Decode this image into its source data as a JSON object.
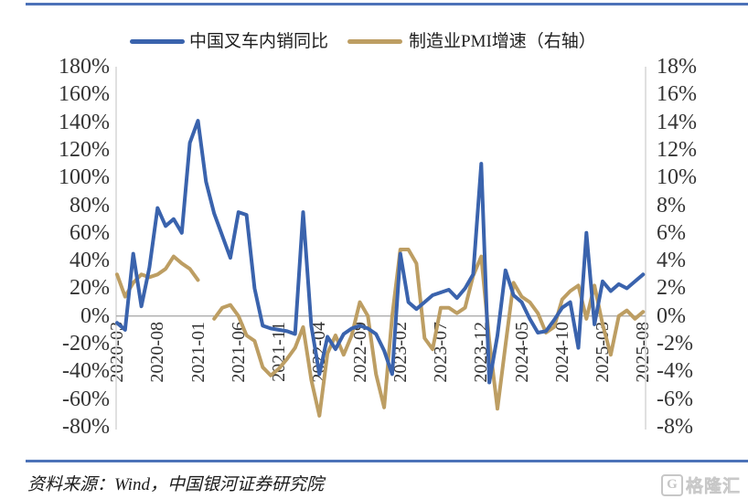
{
  "dividers": {
    "color": "#4C72B8"
  },
  "legend": [
    {
      "label": "中国叉车内销同比",
      "color": "#3A63AD"
    },
    {
      "label": "制造业PMI增速（右轴）",
      "color": "#BD9E63"
    }
  ],
  "source": "资料来源：Wind，中国银河证券研究院",
  "watermark": {
    "icon": "G",
    "text": "格隆汇"
  },
  "chart_data": {
    "type": "line",
    "x": [
      "2020-03",
      "2020-04",
      "2020-05",
      "2020-06",
      "2020-07",
      "2020-08",
      "2020-09",
      "2020-10",
      "2020-11",
      "2020-12",
      "2021-01",
      "2021-02",
      "2021-03",
      "2021-04",
      "2021-05",
      "2021-06",
      "2021-07",
      "2021-08",
      "2021-09",
      "2021-10",
      "2021-11",
      "2021-12",
      "2022-01",
      "2022-02",
      "2022-03",
      "2022-04",
      "2022-05",
      "2022-06",
      "2022-07",
      "2022-08",
      "2022-09",
      "2022-10",
      "2022-11",
      "2022-12",
      "2023-01",
      "2023-02",
      "2023-03",
      "2023-04",
      "2023-05",
      "2023-06",
      "2023-07",
      "2023-08",
      "2023-09",
      "2023-10",
      "2023-11",
      "2023-12",
      "2024-01",
      "2024-02",
      "2024-03",
      "2024-04",
      "2024-05",
      "2024-06",
      "2024-07",
      "2024-08",
      "2024-09",
      "2024-10",
      "2024-11",
      "2024-12",
      "2025-01",
      "2025-02",
      "2025-03",
      "2025-04",
      "2025-05",
      "2025-06",
      "2025-07",
      "2025-08"
    ],
    "x_tick_labels": [
      "2020-03",
      "2020-08",
      "2021-01",
      "2021-06",
      "2021-11",
      "2022-04",
      "2022-09",
      "2023-02",
      "2023-07",
      "2023-12",
      "2024-05",
      "2024-10",
      "2025-03",
      "2025-08"
    ],
    "x_tick_indices": [
      0,
      5,
      10,
      15,
      20,
      25,
      30,
      35,
      40,
      45,
      50,
      55,
      60,
      65
    ],
    "series": [
      {
        "name": "中国叉车内销同比",
        "axis": "left",
        "color": "#3A63AD",
        "values": [
          -5,
          -10,
          45,
          7,
          35,
          78,
          65,
          70,
          60,
          125,
          141,
          97,
          74,
          58,
          42,
          75,
          73,
          20,
          -7,
          -9,
          -10,
          -11,
          -13,
          75,
          -7,
          -42,
          -15,
          -24,
          -13,
          -9,
          -7,
          -9,
          -13,
          -25,
          -42,
          45,
          10,
          5,
          10,
          15,
          17,
          19,
          13,
          20,
          30,
          110,
          -48,
          -14,
          33,
          15,
          10,
          -2,
          -12,
          -11,
          -3,
          6,
          10,
          -23,
          60,
          -6,
          25,
          18,
          23,
          20,
          25,
          30
        ]
      },
      {
        "name": "制造业PMI增速（右轴）",
        "axis": "right",
        "color": "#BD9E63",
        "values": [
          3.0,
          1.4,
          2.4,
          3.0,
          2.8,
          3.0,
          3.4,
          4.3,
          3.8,
          3.4,
          2.6,
          null,
          -0.2,
          0.6,
          0.8,
          0.0,
          -1.4,
          -1.8,
          -3.7,
          -4.3,
          -3.8,
          -3.1,
          -2.3,
          -0.8,
          -4.6,
          -7.2,
          -2.7,
          -1.4,
          -2.8,
          -1.4,
          1.0,
          0.0,
          -4.2,
          -6.6,
          0.0,
          4.8,
          4.8,
          3.8,
          -1.6,
          -2.4,
          0.6,
          0.6,
          0.2,
          0.6,
          2.9,
          4.3,
          -1.8,
          -6.7,
          -2.1,
          2.4,
          1.4,
          1.0,
          0.2,
          -1.2,
          -0.8,
          1.2,
          1.8,
          2.2,
          -0.2,
          2.2,
          -0.6,
          -2.8,
          0.0,
          0.4,
          -0.2,
          0.3
        ]
      }
    ],
    "left_axis": {
      "ticks": [
        "180%",
        "160%",
        "140%",
        "120%",
        "100%",
        "80%",
        "60%",
        "40%",
        "20%",
        "0%",
        "-20%",
        "-40%",
        "-60%",
        "-80%"
      ],
      "max": 180,
      "min": -80
    },
    "right_axis": {
      "ticks": [
        "18%",
        "16%",
        "14%",
        "12%",
        "10%",
        "8%",
        "6%",
        "4%",
        "2%",
        "0%",
        "-2%",
        "-4%",
        "-6%",
        "-8%"
      ],
      "max": 18,
      "min": -8
    },
    "grid": "zero-line-only",
    "legend_position": "top-center"
  }
}
